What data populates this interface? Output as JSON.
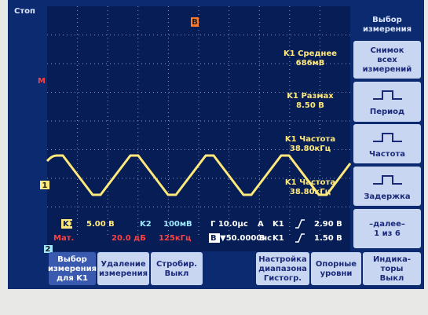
{
  "status": {
    "state": "Стоп"
  },
  "markers": {
    "trigger": "B",
    "math": "M",
    "ch1": "1",
    "ch2": "2"
  },
  "measurements": [
    {
      "label": "K1 Среднее",
      "value": "686мВ"
    },
    {
      "label": "K1 Размах",
      "value": "8.50 В"
    },
    {
      "label": "K1 Частота",
      "value": "38.80кГц"
    },
    {
      "label": "K1 Частота",
      "value": "38.80кГц"
    }
  ],
  "readout": {
    "row1": [
      "K1",
      "5.00 В",
      "K2",
      "100мВ",
      "Г 10.0μс",
      "A",
      "K1",
      "2.90 В"
    ],
    "row2": [
      "Мат.",
      "20.0 дБ",
      "125кГц",
      "B",
      "▼50.0000нс",
      "B",
      "K1",
      "1.50 В"
    ]
  },
  "side_menu": [
    {
      "lines": [
        "Выбор",
        "измерения"
      ]
    },
    {
      "lines": [
        "Снимок",
        "всех",
        "измерений"
      ]
    },
    {
      "lines": [
        "Период"
      ]
    },
    {
      "lines": [
        "Частота"
      ]
    },
    {
      "lines": [
        "Задержка"
      ]
    },
    {
      "lines": [
        "–далее–",
        "1 из 6"
      ]
    }
  ],
  "bottom_menu": [
    {
      "lines": [
        "Выбор",
        "измерения",
        "для K1"
      ]
    },
    {
      "lines": [
        "Удаление",
        "измерения"
      ]
    },
    {
      "lines": [
        "Стробир.",
        "Выкл"
      ]
    },
    {
      "lines": [
        "Настройка",
        "диапазона",
        "Гистогр."
      ]
    },
    {
      "lines": [
        "Опорные",
        "уровни"
      ]
    },
    {
      "lines": [
        "Индика-",
        "торы",
        "Выкл"
      ]
    }
  ]
}
